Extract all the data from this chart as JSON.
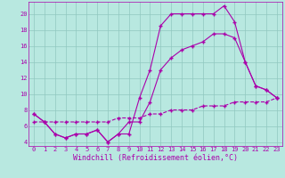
{
  "bg_color": "#b8e8e0",
  "line_color": "#aa00aa",
  "grid_color": "#90c8c0",
  "xlabel": "Windchill (Refroidissement éolien,°C)",
  "xlabel_fontsize": 6,
  "ylabel_ticks": [
    4,
    6,
    8,
    10,
    12,
    14,
    16,
    18,
    20
  ],
  "xtick_labels": [
    "0",
    "1",
    "2",
    "3",
    "4",
    "5",
    "6",
    "7",
    "8",
    "9",
    "10",
    "11",
    "12",
    "13",
    "14",
    "15",
    "16",
    "17",
    "18",
    "19",
    "20",
    "21",
    "22",
    "23"
  ],
  "xlim": [
    -0.5,
    23.5
  ],
  "ylim": [
    3.5,
    21.5
  ],
  "line1_x": [
    0,
    1,
    2,
    3,
    4,
    5,
    6,
    7,
    8,
    9,
    10,
    11,
    12,
    13,
    14,
    15,
    16,
    17,
    18,
    19,
    20,
    21,
    22,
    23
  ],
  "line1_y": [
    7.5,
    6.5,
    5.0,
    4.5,
    5.0,
    5.0,
    5.5,
    4.0,
    5.0,
    5.0,
    9.5,
    13.0,
    18.5,
    20.0,
    20.0,
    20.0,
    20.0,
    20.0,
    21.0,
    19.0,
    14.0,
    11.0,
    10.5,
    9.5
  ],
  "line2_x": [
    0,
    1,
    2,
    3,
    4,
    5,
    6,
    7,
    8,
    9,
    10,
    11,
    12,
    13,
    14,
    15,
    16,
    17,
    18,
    19,
    20,
    21,
    22,
    23
  ],
  "line2_y": [
    7.5,
    6.5,
    5.0,
    4.5,
    5.0,
    5.0,
    5.5,
    4.0,
    5.0,
    6.5,
    6.5,
    9.0,
    13.0,
    14.5,
    15.5,
    16.0,
    16.5,
    17.5,
    17.5,
    17.0,
    14.0,
    11.0,
    10.5,
    9.5
  ],
  "line3_x": [
    0,
    1,
    2,
    3,
    4,
    5,
    6,
    7,
    8,
    9,
    10,
    11,
    12,
    13,
    14,
    15,
    16,
    17,
    18,
    19,
    20,
    21,
    22,
    23
  ],
  "line3_y": [
    6.5,
    6.5,
    6.5,
    6.5,
    6.5,
    6.5,
    6.5,
    6.5,
    7.0,
    7.0,
    7.0,
    7.5,
    7.5,
    8.0,
    8.0,
    8.0,
    8.5,
    8.5,
    8.5,
    9.0,
    9.0,
    9.0,
    9.0,
    9.5
  ],
  "marker": "+",
  "marker_size": 3.0,
  "line_width": 0.8,
  "tick_fontsize": 5.0
}
